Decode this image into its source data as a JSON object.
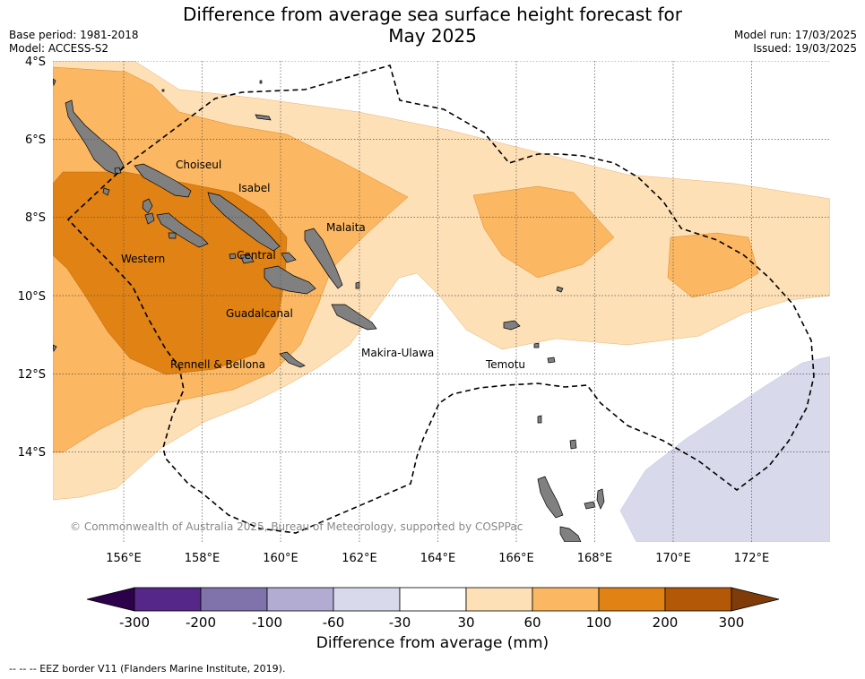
{
  "title_line1": "Difference from average sea surface height forecast for",
  "title_line2": "May 2025",
  "base_period": "Base period: 1981-2018",
  "model": "Model: ACCESS-S2",
  "model_run": "Model run: 17/03/2025",
  "issued": "Issued: 19/03/2025",
  "map": {
    "lat_labels": [
      "4°S",
      "6°S",
      "8°S",
      "10°S",
      "12°S",
      "14°S"
    ],
    "lon_labels": [
      "156°E",
      "158°E",
      "160°E",
      "162°E",
      "164°E",
      "166°E",
      "168°E",
      "170°E",
      "172°E"
    ],
    "places": [
      "Choiseul",
      "Isabel",
      "Malaita",
      "Western",
      "Central",
      "Guadalcanal",
      "Rennell & Bellona",
      "Makira-Ulawa",
      "Temotu"
    ],
    "copyright": "© Commonwealth of Australia 2025, Bureau of Meteorology, supported by COSPPac"
  },
  "colorbar": {
    "ticks": [
      "-300",
      "-200",
      "-100",
      "-60",
      "-30",
      "30",
      "60",
      "100",
      "200",
      "300"
    ],
    "colors": [
      "#542788",
      "#8073ac",
      "#b2abd2",
      "#d8daeb",
      "#ffffff",
      "#fee0b6",
      "#fbb761",
      "#e08214",
      "#b35806"
    ],
    "under_color": "#2d004b",
    "over_color": "#7f3b08",
    "label": "Difference from average (mm)"
  },
  "legend_eez": "-- -- -- EEZ border V11 (Flanders Marine Institute, 2019).",
  "colors": {
    "land": "#808080",
    "level_30_60": "#fee0b6",
    "level_60_100": "#fbb761",
    "level_100_200": "#e08214",
    "level_neg": "#d8daeb"
  }
}
